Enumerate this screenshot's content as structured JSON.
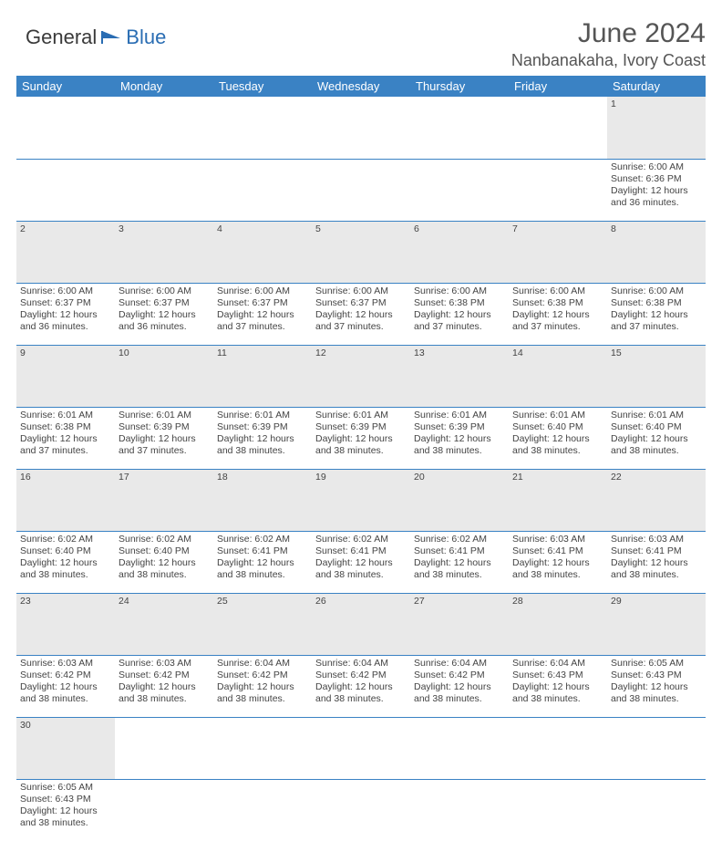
{
  "logo": {
    "text1": "General",
    "text2": "Blue"
  },
  "header": {
    "month": "June 2024",
    "location": "Nanbanakaha, Ivory Coast"
  },
  "colors": {
    "header_bg": "#3a82c4",
    "daynum_bg": "#e9e9e9"
  },
  "weekdays": [
    "Sunday",
    "Monday",
    "Tuesday",
    "Wednesday",
    "Thursday",
    "Friday",
    "Saturday"
  ],
  "weeks": [
    [
      null,
      null,
      null,
      null,
      null,
      null,
      {
        "n": "1",
        "sr": "Sunrise: 6:00 AM",
        "ss": "Sunset: 6:36 PM",
        "d1": "Daylight: 12 hours",
        "d2": "and 36 minutes."
      }
    ],
    [
      {
        "n": "2",
        "sr": "Sunrise: 6:00 AM",
        "ss": "Sunset: 6:37 PM",
        "d1": "Daylight: 12 hours",
        "d2": "and 36 minutes."
      },
      {
        "n": "3",
        "sr": "Sunrise: 6:00 AM",
        "ss": "Sunset: 6:37 PM",
        "d1": "Daylight: 12 hours",
        "d2": "and 36 minutes."
      },
      {
        "n": "4",
        "sr": "Sunrise: 6:00 AM",
        "ss": "Sunset: 6:37 PM",
        "d1": "Daylight: 12 hours",
        "d2": "and 37 minutes."
      },
      {
        "n": "5",
        "sr": "Sunrise: 6:00 AM",
        "ss": "Sunset: 6:37 PM",
        "d1": "Daylight: 12 hours",
        "d2": "and 37 minutes."
      },
      {
        "n": "6",
        "sr": "Sunrise: 6:00 AM",
        "ss": "Sunset: 6:38 PM",
        "d1": "Daylight: 12 hours",
        "d2": "and 37 minutes."
      },
      {
        "n": "7",
        "sr": "Sunrise: 6:00 AM",
        "ss": "Sunset: 6:38 PM",
        "d1": "Daylight: 12 hours",
        "d2": "and 37 minutes."
      },
      {
        "n": "8",
        "sr": "Sunrise: 6:00 AM",
        "ss": "Sunset: 6:38 PM",
        "d1": "Daylight: 12 hours",
        "d2": "and 37 minutes."
      }
    ],
    [
      {
        "n": "9",
        "sr": "Sunrise: 6:01 AM",
        "ss": "Sunset: 6:38 PM",
        "d1": "Daylight: 12 hours",
        "d2": "and 37 minutes."
      },
      {
        "n": "10",
        "sr": "Sunrise: 6:01 AM",
        "ss": "Sunset: 6:39 PM",
        "d1": "Daylight: 12 hours",
        "d2": "and 37 minutes."
      },
      {
        "n": "11",
        "sr": "Sunrise: 6:01 AM",
        "ss": "Sunset: 6:39 PM",
        "d1": "Daylight: 12 hours",
        "d2": "and 38 minutes."
      },
      {
        "n": "12",
        "sr": "Sunrise: 6:01 AM",
        "ss": "Sunset: 6:39 PM",
        "d1": "Daylight: 12 hours",
        "d2": "and 38 minutes."
      },
      {
        "n": "13",
        "sr": "Sunrise: 6:01 AM",
        "ss": "Sunset: 6:39 PM",
        "d1": "Daylight: 12 hours",
        "d2": "and 38 minutes."
      },
      {
        "n": "14",
        "sr": "Sunrise: 6:01 AM",
        "ss": "Sunset: 6:40 PM",
        "d1": "Daylight: 12 hours",
        "d2": "and 38 minutes."
      },
      {
        "n": "15",
        "sr": "Sunrise: 6:01 AM",
        "ss": "Sunset: 6:40 PM",
        "d1": "Daylight: 12 hours",
        "d2": "and 38 minutes."
      }
    ],
    [
      {
        "n": "16",
        "sr": "Sunrise: 6:02 AM",
        "ss": "Sunset: 6:40 PM",
        "d1": "Daylight: 12 hours",
        "d2": "and 38 minutes."
      },
      {
        "n": "17",
        "sr": "Sunrise: 6:02 AM",
        "ss": "Sunset: 6:40 PM",
        "d1": "Daylight: 12 hours",
        "d2": "and 38 minutes."
      },
      {
        "n": "18",
        "sr": "Sunrise: 6:02 AM",
        "ss": "Sunset: 6:41 PM",
        "d1": "Daylight: 12 hours",
        "d2": "and 38 minutes."
      },
      {
        "n": "19",
        "sr": "Sunrise: 6:02 AM",
        "ss": "Sunset: 6:41 PM",
        "d1": "Daylight: 12 hours",
        "d2": "and 38 minutes."
      },
      {
        "n": "20",
        "sr": "Sunrise: 6:02 AM",
        "ss": "Sunset: 6:41 PM",
        "d1": "Daylight: 12 hours",
        "d2": "and 38 minutes."
      },
      {
        "n": "21",
        "sr": "Sunrise: 6:03 AM",
        "ss": "Sunset: 6:41 PM",
        "d1": "Daylight: 12 hours",
        "d2": "and 38 minutes."
      },
      {
        "n": "22",
        "sr": "Sunrise: 6:03 AM",
        "ss": "Sunset: 6:41 PM",
        "d1": "Daylight: 12 hours",
        "d2": "and 38 minutes."
      }
    ],
    [
      {
        "n": "23",
        "sr": "Sunrise: 6:03 AM",
        "ss": "Sunset: 6:42 PM",
        "d1": "Daylight: 12 hours",
        "d2": "and 38 minutes."
      },
      {
        "n": "24",
        "sr": "Sunrise: 6:03 AM",
        "ss": "Sunset: 6:42 PM",
        "d1": "Daylight: 12 hours",
        "d2": "and 38 minutes."
      },
      {
        "n": "25",
        "sr": "Sunrise: 6:04 AM",
        "ss": "Sunset: 6:42 PM",
        "d1": "Daylight: 12 hours",
        "d2": "and 38 minutes."
      },
      {
        "n": "26",
        "sr": "Sunrise: 6:04 AM",
        "ss": "Sunset: 6:42 PM",
        "d1": "Daylight: 12 hours",
        "d2": "and 38 minutes."
      },
      {
        "n": "27",
        "sr": "Sunrise: 6:04 AM",
        "ss": "Sunset: 6:42 PM",
        "d1": "Daylight: 12 hours",
        "d2": "and 38 minutes."
      },
      {
        "n": "28",
        "sr": "Sunrise: 6:04 AM",
        "ss": "Sunset: 6:43 PM",
        "d1": "Daylight: 12 hours",
        "d2": "and 38 minutes."
      },
      {
        "n": "29",
        "sr": "Sunrise: 6:05 AM",
        "ss": "Sunset: 6:43 PM",
        "d1": "Daylight: 12 hours",
        "d2": "and 38 minutes."
      }
    ],
    [
      {
        "n": "30",
        "sr": "Sunrise: 6:05 AM",
        "ss": "Sunset: 6:43 PM",
        "d1": "Daylight: 12 hours",
        "d2": "and 38 minutes."
      },
      null,
      null,
      null,
      null,
      null,
      null
    ]
  ]
}
